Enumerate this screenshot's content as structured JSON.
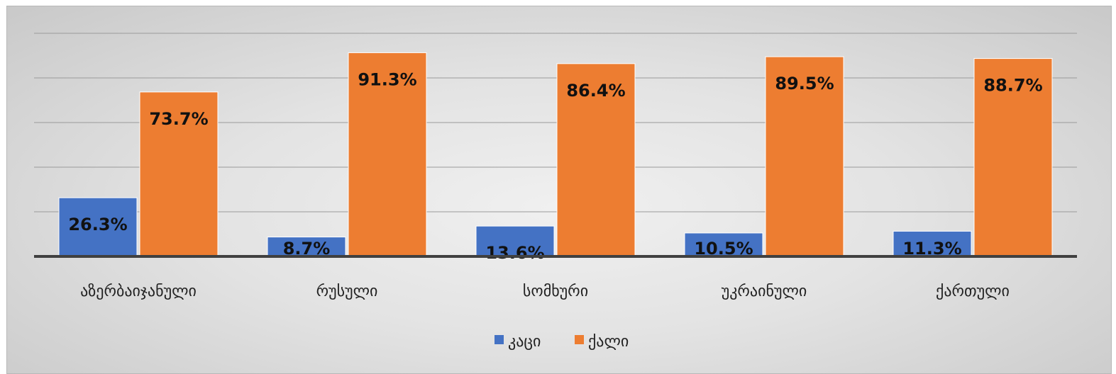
{
  "chart_data": {
    "type": "bar",
    "categories": [
      "აზერბაიჯანული",
      "რუსული",
      "სომხური",
      "უკრაინული",
      "ქართული"
    ],
    "series": [
      {
        "name": "კაცი",
        "values": [
          26.3,
          8.7,
          13.6,
          10.5,
          11.3
        ],
        "labels": [
          "26.3%",
          "8.7%",
          "13.6%",
          "10.5%",
          "11.3%"
        ],
        "color": "#4472c4"
      },
      {
        "name": "ქალი",
        "values": [
          73.7,
          91.3,
          86.4,
          89.5,
          88.7
        ],
        "labels": [
          "73.7%",
          "91.3%",
          "86.4%",
          "89.5%",
          "88.7%"
        ],
        "color": "#ed7d31"
      }
    ],
    "ylim": [
      0,
      100
    ],
    "grid": true,
    "legend_position": "bottom"
  }
}
